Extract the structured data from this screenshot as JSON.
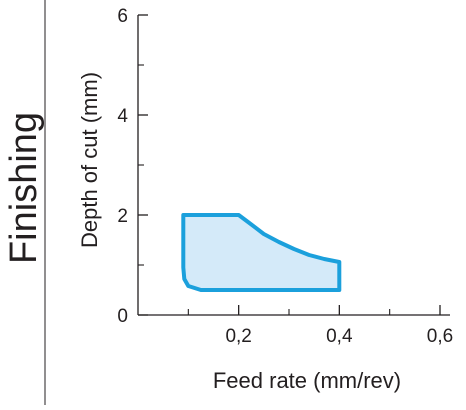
{
  "side_label": "Finishing",
  "colors": {
    "region_stroke": "#1ba0dc",
    "region_fill": "#d4eaf9",
    "axis": "#231f20",
    "text": "#231f20"
  },
  "chart_data": {
    "type": "area",
    "title": "",
    "xlabel": "Feed rate (mm/rev)",
    "ylabel": "Depth of cut (mm)",
    "xlim": [
      0,
      0.6
    ],
    "ylim": [
      0,
      6
    ],
    "x_ticks": [
      {
        "value": 0.2,
        "label": "0,2"
      },
      {
        "value": 0.4,
        "label": "0,4"
      },
      {
        "value": 0.6,
        "label": "0,6"
      }
    ],
    "y_ticks": [
      {
        "value": 0,
        "label": "0"
      },
      {
        "value": 2,
        "label": "2"
      },
      {
        "value": 4,
        "label": "4"
      },
      {
        "value": 6,
        "label": "6"
      }
    ],
    "y_minor_ticks": [
      1,
      3,
      5
    ],
    "x_minor_ticks": [
      0.1,
      0.3,
      0.5
    ],
    "grid": false,
    "region": {
      "name": "",
      "boundary": [
        [
          0.09,
          0.95
        ],
        [
          0.09,
          2.0
        ],
        [
          0.2,
          2.0
        ],
        [
          0.22,
          1.85
        ],
        [
          0.25,
          1.62
        ],
        [
          0.28,
          1.46
        ],
        [
          0.31,
          1.32
        ],
        [
          0.34,
          1.2
        ],
        [
          0.37,
          1.12
        ],
        [
          0.4,
          1.06
        ],
        [
          0.4,
          0.5
        ],
        [
          0.125,
          0.5
        ],
        [
          0.1,
          0.58
        ],
        [
          0.092,
          0.72
        ],
        [
          0.09,
          0.95
        ]
      ]
    }
  }
}
